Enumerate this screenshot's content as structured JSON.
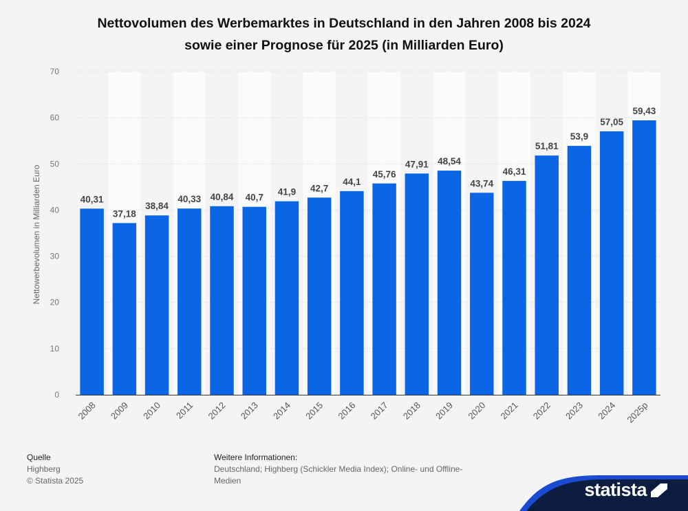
{
  "title_line1": "Nettovolumen des Werbemarktes in Deutschland in den Jahren 2008 bis 2024",
  "title_line2": "sowie einer Prognose für 2025 (in Milliarden Euro)",
  "chart_data": {
    "type": "bar",
    "categories": [
      "2008",
      "2009",
      "2010",
      "2011",
      "2012",
      "2013",
      "2014",
      "2015",
      "2016",
      "2017",
      "2018",
      "2019",
      "2020",
      "2021",
      "2022",
      "2023",
      "2024",
      "2025p"
    ],
    "values": [
      40.31,
      37.18,
      38.84,
      40.33,
      40.84,
      40.7,
      41.9,
      42.7,
      44.1,
      45.76,
      47.91,
      48.54,
      43.74,
      46.31,
      51.81,
      53.9,
      57.05,
      59.43
    ],
    "value_labels": [
      "40,31",
      "37,18",
      "38,84",
      "40,33",
      "40,84",
      "40,7",
      "41,9",
      "42,7",
      "44,1",
      "45,76",
      "47,91",
      "48,54",
      "43,74",
      "46,31",
      "51,81",
      "53,9",
      "57,05",
      "59,43"
    ],
    "ylabel": "Nettowerbevolumen in Milliarden Euro",
    "ylim": [
      0,
      70
    ],
    "yticks": [
      0,
      10,
      20,
      30,
      40,
      50,
      60,
      70
    ],
    "grid": true,
    "bar_color": "#0a66e4"
  },
  "footer": {
    "source_heading": "Quelle",
    "source_name": "Highberg",
    "copyright": "© Statista 2025",
    "info_heading": "Weitere Informationen:",
    "info_text": "Deutschland; Highberg (Schickler Media Index); Online- und Offline-Medien"
  },
  "brand": {
    "name": "statista",
    "color": "#0d1d3f",
    "accent": "#1a4bd1"
  }
}
